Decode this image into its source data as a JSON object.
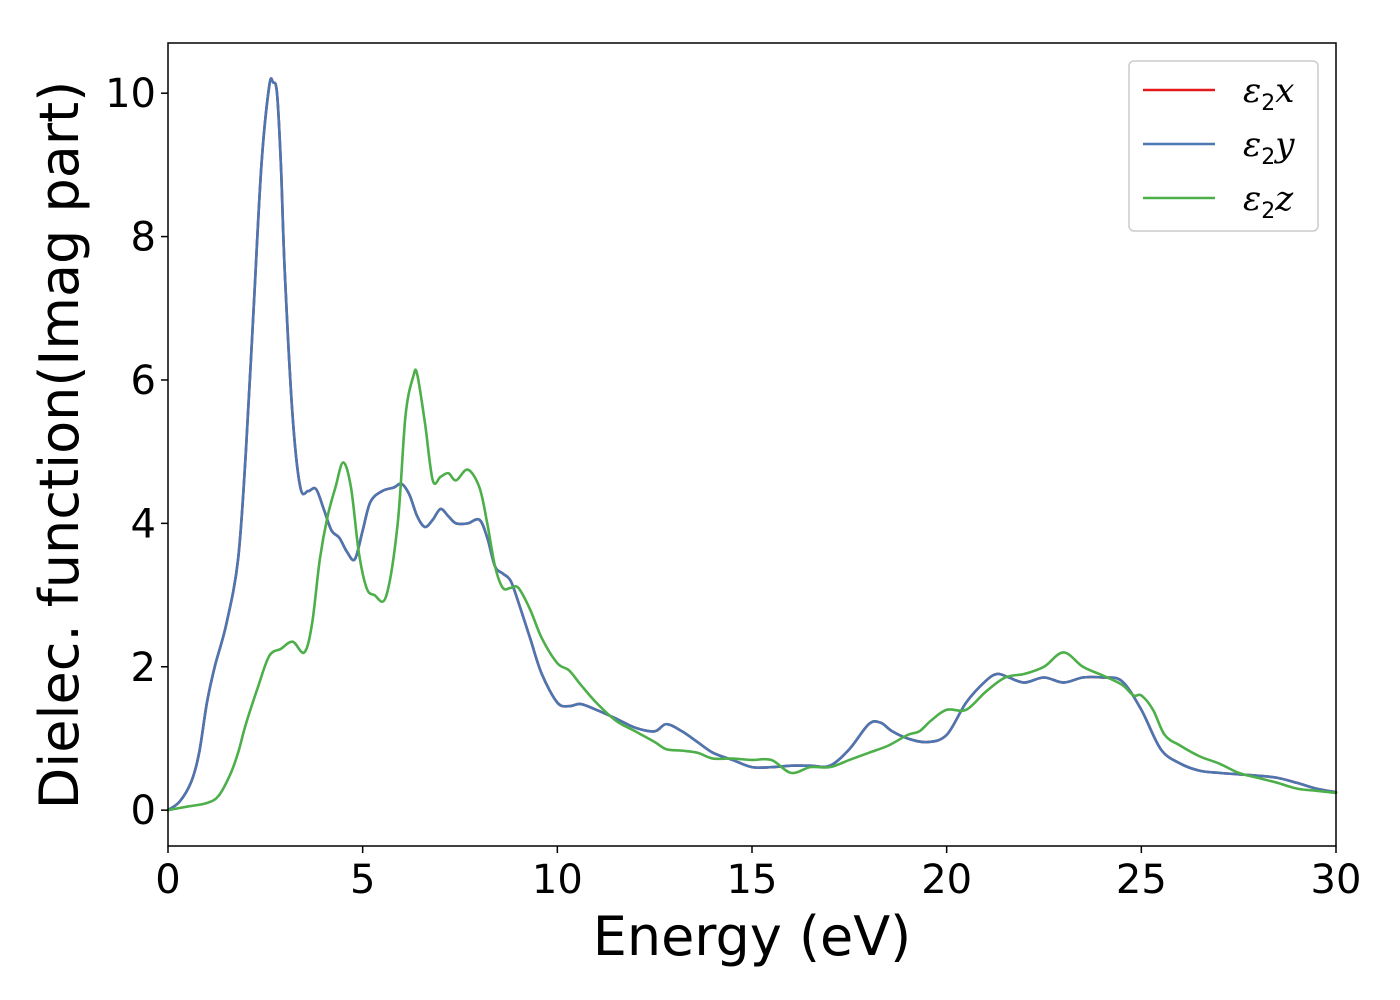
{
  "chart_data": {
    "type": "line",
    "xlabel": "Energy (eV)",
    "ylabel": "Dielec. function(Imag part)",
    "xlim": [
      0,
      30
    ],
    "ylim": [
      -0.5,
      10.7
    ],
    "xticks": [
      0,
      5,
      10,
      15,
      20,
      25,
      30
    ],
    "yticks": [
      0,
      2,
      4,
      6,
      8,
      10
    ],
    "grid": false,
    "legend_placement": "top-right",
    "series": [
      {
        "name": "ε2x",
        "legend": {
          "base": "ε",
          "sub": "2",
          "suffix": "x"
        },
        "color": "#e41a1c",
        "x": [
          0,
          0.3,
          0.6,
          0.8,
          1.0,
          1.2,
          1.5,
          1.8,
          2.0,
          2.2,
          2.4,
          2.6,
          2.7,
          2.8,
          2.9,
          3.0,
          3.2,
          3.4,
          3.6,
          3.8,
          4.0,
          4.2,
          4.4,
          4.6,
          4.8,
          5.0,
          5.2,
          5.5,
          5.8,
          6.0,
          6.2,
          6.4,
          6.6,
          6.8,
          7.0,
          7.2,
          7.4,
          7.7,
          8.0,
          8.2,
          8.4,
          8.6,
          8.8,
          9.0,
          9.3,
          9.6,
          10.0,
          10.3,
          10.6,
          11.0,
          11.5,
          12.0,
          12.5,
          12.8,
          13.2,
          13.6,
          14.0,
          14.5,
          15.0,
          15.5,
          16.0,
          16.5,
          17.0,
          17.5,
          18.0,
          18.3,
          18.6,
          19.0,
          19.5,
          20.0,
          20.5,
          21.0,
          21.3,
          21.6,
          22.0,
          22.5,
          23.0,
          23.5,
          24.0,
          24.5,
          25.0,
          25.5,
          26.0,
          26.5,
          27.0,
          27.5,
          28.0,
          28.5,
          29.0,
          29.5,
          30.0
        ],
        "y": [
          0.0,
          0.12,
          0.4,
          0.8,
          1.5,
          2.0,
          2.6,
          3.5,
          5.0,
          7.0,
          9.0,
          10.1,
          10.15,
          10.0,
          9.0,
          7.5,
          5.5,
          4.5,
          4.45,
          4.48,
          4.2,
          3.9,
          3.8,
          3.6,
          3.5,
          3.9,
          4.3,
          4.45,
          4.5,
          4.55,
          4.4,
          4.1,
          3.95,
          4.05,
          4.2,
          4.1,
          4.0,
          4.0,
          4.05,
          3.8,
          3.4,
          3.3,
          3.2,
          2.9,
          2.4,
          1.9,
          1.5,
          1.45,
          1.48,
          1.4,
          1.28,
          1.15,
          1.1,
          1.2,
          1.1,
          0.95,
          0.8,
          0.7,
          0.6,
          0.6,
          0.62,
          0.62,
          0.62,
          0.85,
          1.2,
          1.22,
          1.1,
          1.0,
          0.95,
          1.05,
          1.5,
          1.8,
          1.9,
          1.85,
          1.78,
          1.85,
          1.78,
          1.85,
          1.85,
          1.8,
          1.4,
          0.85,
          0.65,
          0.55,
          0.52,
          0.5,
          0.48,
          0.45,
          0.38,
          0.3,
          0.25
        ]
      },
      {
        "name": "ε2y",
        "legend": {
          "base": "ε",
          "sub": "2",
          "suffix": "y"
        },
        "color": "#4a77b2",
        "x": [
          0,
          0.3,
          0.6,
          0.8,
          1.0,
          1.2,
          1.5,
          1.8,
          2.0,
          2.2,
          2.4,
          2.6,
          2.7,
          2.8,
          2.9,
          3.0,
          3.2,
          3.4,
          3.6,
          3.8,
          4.0,
          4.2,
          4.4,
          4.6,
          4.8,
          5.0,
          5.2,
          5.5,
          5.8,
          6.0,
          6.2,
          6.4,
          6.6,
          6.8,
          7.0,
          7.2,
          7.4,
          7.7,
          8.0,
          8.2,
          8.4,
          8.6,
          8.8,
          9.0,
          9.3,
          9.6,
          10.0,
          10.3,
          10.6,
          11.0,
          11.5,
          12.0,
          12.5,
          12.8,
          13.2,
          13.6,
          14.0,
          14.5,
          15.0,
          15.5,
          16.0,
          16.5,
          17.0,
          17.5,
          18.0,
          18.3,
          18.6,
          19.0,
          19.5,
          20.0,
          20.5,
          21.0,
          21.3,
          21.6,
          22.0,
          22.5,
          23.0,
          23.5,
          24.0,
          24.5,
          25.0,
          25.5,
          26.0,
          26.5,
          27.0,
          27.5,
          28.0,
          28.5,
          29.0,
          29.5,
          30.0
        ],
        "y": [
          0.0,
          0.12,
          0.4,
          0.8,
          1.5,
          2.0,
          2.6,
          3.5,
          5.0,
          7.0,
          9.0,
          10.1,
          10.15,
          10.0,
          9.0,
          7.5,
          5.5,
          4.5,
          4.45,
          4.48,
          4.2,
          3.9,
          3.8,
          3.6,
          3.5,
          3.9,
          4.3,
          4.45,
          4.5,
          4.55,
          4.4,
          4.1,
          3.95,
          4.05,
          4.2,
          4.1,
          4.0,
          4.0,
          4.05,
          3.8,
          3.4,
          3.3,
          3.2,
          2.9,
          2.4,
          1.9,
          1.5,
          1.45,
          1.48,
          1.4,
          1.28,
          1.15,
          1.1,
          1.2,
          1.1,
          0.95,
          0.8,
          0.7,
          0.6,
          0.6,
          0.62,
          0.62,
          0.62,
          0.85,
          1.2,
          1.22,
          1.1,
          1.0,
          0.95,
          1.05,
          1.5,
          1.8,
          1.9,
          1.85,
          1.78,
          1.85,
          1.78,
          1.85,
          1.85,
          1.8,
          1.4,
          0.85,
          0.65,
          0.55,
          0.52,
          0.5,
          0.48,
          0.45,
          0.38,
          0.3,
          0.25
        ]
      },
      {
        "name": "ε2z",
        "legend": {
          "base": "ε",
          "sub": "2",
          "suffix": "z"
        },
        "color": "#4daf4a",
        "x": [
          0,
          0.5,
          1.0,
          1.3,
          1.6,
          1.8,
          2.0,
          2.3,
          2.6,
          2.9,
          3.2,
          3.5,
          3.7,
          3.9,
          4.1,
          4.3,
          4.5,
          4.7,
          4.9,
          5.1,
          5.3,
          5.6,
          5.9,
          6.1,
          6.3,
          6.4,
          6.6,
          6.8,
          7.0,
          7.2,
          7.4,
          7.7,
          8.0,
          8.2,
          8.4,
          8.6,
          8.8,
          9.0,
          9.3,
          9.6,
          10.0,
          10.3,
          10.6,
          11.0,
          11.5,
          12.0,
          12.5,
          12.8,
          13.2,
          13.6,
          14.0,
          14.5,
          15.0,
          15.5,
          16.0,
          16.5,
          17.0,
          17.5,
          18.0,
          18.5,
          19.0,
          19.3,
          19.6,
          20.0,
          20.5,
          21.0,
          21.5,
          22.0,
          22.5,
          23.0,
          23.5,
          24.0,
          24.5,
          24.8,
          25.0,
          25.3,
          25.6,
          26.0,
          26.5,
          27.0,
          27.5,
          28.0,
          28.5,
          29.0,
          29.5,
          30.0
        ],
        "y": [
          0.0,
          0.05,
          0.1,
          0.2,
          0.5,
          0.8,
          1.2,
          1.7,
          2.15,
          2.25,
          2.35,
          2.2,
          2.6,
          3.5,
          4.1,
          4.5,
          4.85,
          4.5,
          3.6,
          3.1,
          3.0,
          2.98,
          4.0,
          5.5,
          6.05,
          6.08,
          5.4,
          4.6,
          4.65,
          4.7,
          4.6,
          4.75,
          4.5,
          4.0,
          3.4,
          3.1,
          3.1,
          3.1,
          2.8,
          2.4,
          2.05,
          1.95,
          1.75,
          1.5,
          1.25,
          1.1,
          0.95,
          0.85,
          0.83,
          0.8,
          0.72,
          0.72,
          0.7,
          0.7,
          0.52,
          0.6,
          0.6,
          0.7,
          0.8,
          0.9,
          1.05,
          1.1,
          1.25,
          1.4,
          1.4,
          1.65,
          1.85,
          1.9,
          2.0,
          2.2,
          2.0,
          1.88,
          1.75,
          1.6,
          1.6,
          1.4,
          1.05,
          0.9,
          0.75,
          0.65,
          0.52,
          0.45,
          0.38,
          0.3,
          0.27,
          0.24
        ]
      }
    ]
  }
}
